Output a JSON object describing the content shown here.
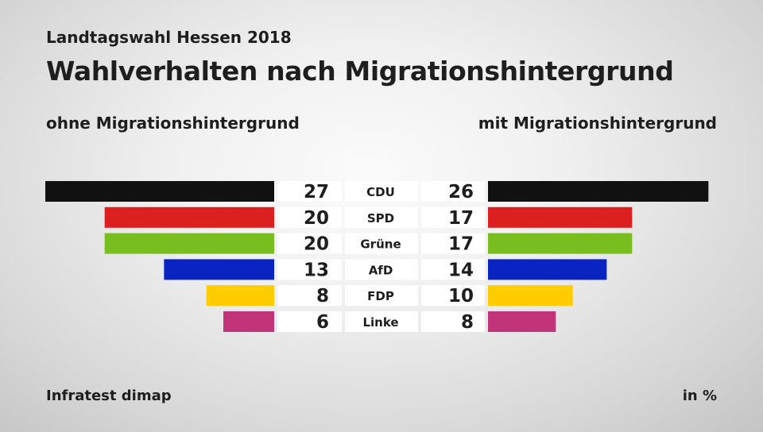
{
  "header": {
    "supertitle": "Landtagswahl Hessen 2018",
    "title": "Wahlverhalten nach Migrationshintergrund"
  },
  "footer": {
    "source": "Infratest dimap",
    "unit": "in %"
  },
  "chart_data": {
    "type": "bar",
    "orientation": "horizontal-butterfly",
    "title": "Wahlverhalten nach Migrationshintergrund",
    "subtitle": "Landtagswahl Hessen 2018",
    "categories": [
      "CDU",
      "SPD",
      "Grüne",
      "AfD",
      "FDP",
      "Linke"
    ],
    "colors": [
      "#111111",
      "#dc1f1f",
      "#78be1e",
      "#0a24c2",
      "#ffcc00",
      "#c23479"
    ],
    "series": [
      {
        "name": "ohne Migrationshintergrund",
        "values": [
          27,
          20,
          20,
          13,
          8,
          6
        ]
      },
      {
        "name": "mit Migrationshintergrund",
        "values": [
          26,
          17,
          17,
          14,
          10,
          8
        ]
      }
    ],
    "unit": "in %",
    "xlim": [
      0,
      27
    ]
  }
}
